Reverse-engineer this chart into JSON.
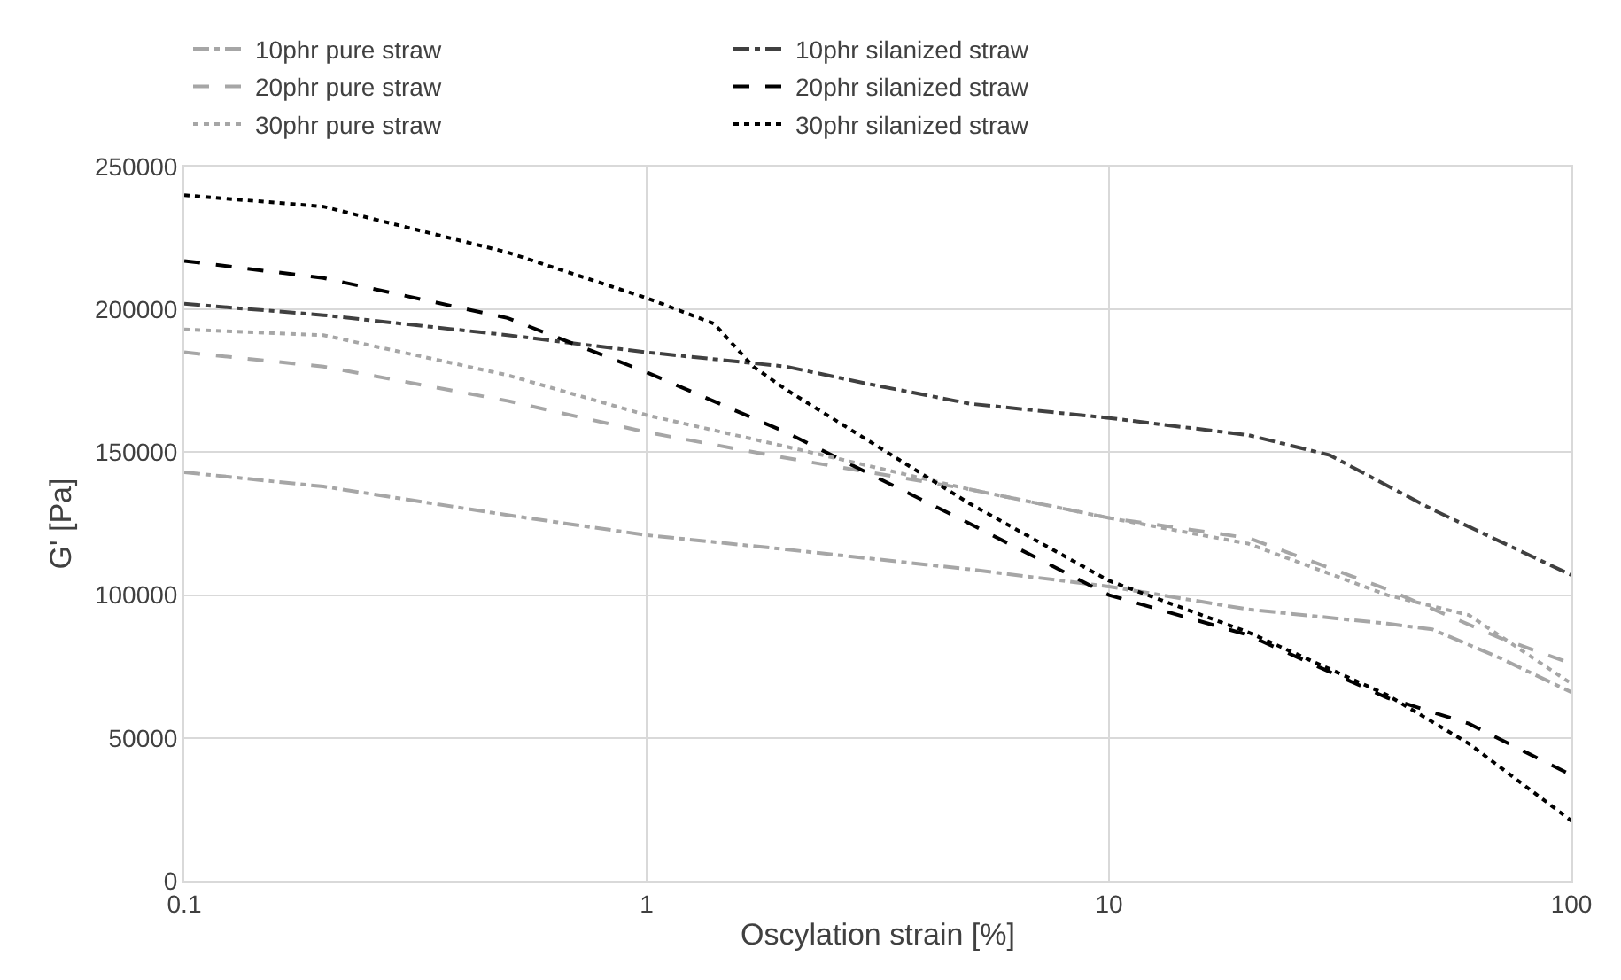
{
  "chart_data": {
    "type": "line",
    "xlabel": "Oscylation strain [%]",
    "ylabel": "G' [Pa]",
    "log": "x",
    "grid": true,
    "legend": "top",
    "xlim": [
      0.1,
      100
    ],
    "xticks": [
      0.1,
      1,
      10,
      100
    ],
    "ylim": [
      0,
      250000
    ],
    "yticks": [
      0,
      50000,
      100000,
      150000,
      200000,
      250000
    ],
    "series": [
      {
        "name": "10phr pure straw",
        "color": "#a6a6a6",
        "line_style": "dashdot",
        "x": [
          0.1,
          0.2,
          0.5,
          1,
          2,
          5,
          10,
          20,
          40,
          50,
          70,
          100
        ],
        "values": [
          143000,
          138000,
          128000,
          121000,
          116000,
          109000,
          103000,
          95000,
          90000,
          88000,
          78000,
          66000
        ]
      },
      {
        "name": "10phr silanized straw",
        "color": "#404040",
        "line_style": "dashdot",
        "x": [
          0.1,
          0.2,
          0.5,
          1,
          2,
          3,
          5,
          10,
          20,
          30,
          50,
          100
        ],
        "values": [
          202000,
          198000,
          191000,
          185000,
          180000,
          174000,
          167000,
          162000,
          156000,
          149000,
          130000,
          107000
        ]
      },
      {
        "name": "20phr pure straw",
        "color": "#a6a6a6",
        "line_style": "dashed",
        "x": [
          0.1,
          0.2,
          0.5,
          1,
          2,
          5,
          10,
          20,
          40,
          70,
          100
        ],
        "values": [
          185000,
          180000,
          168000,
          157000,
          148000,
          137000,
          127000,
          120000,
          102000,
          85000,
          76000
        ]
      },
      {
        "name": "20phr silanized straw",
        "color": "#000000",
        "line_style": "dashed",
        "x": [
          0.1,
          0.2,
          0.5,
          1,
          2,
          5,
          10,
          20,
          40,
          60,
          100
        ],
        "values": [
          217000,
          211000,
          197000,
          178000,
          157000,
          125000,
          100000,
          86000,
          64000,
          55000,
          37000
        ]
      },
      {
        "name": "30phr pure straw",
        "color": "#a6a6a6",
        "line_style": "dotted",
        "x": [
          0.1,
          0.2,
          0.5,
          1,
          2,
          5,
          10,
          20,
          40,
          60,
          100
        ],
        "values": [
          193000,
          191000,
          177000,
          163000,
          152000,
          137000,
          127000,
          118000,
          100000,
          93000,
          69000
        ]
      },
      {
        "name": "30phr silanized straw",
        "color": "#000000",
        "line_style": "dotted",
        "x": [
          0.1,
          0.2,
          0.5,
          1,
          1.4,
          1.7,
          2,
          5,
          10,
          20,
          40,
          60,
          100
        ],
        "values": [
          240000,
          236000,
          220000,
          204000,
          195000,
          180000,
          172000,
          132000,
          105000,
          87000,
          65000,
          48000,
          21000
        ]
      }
    ]
  }
}
